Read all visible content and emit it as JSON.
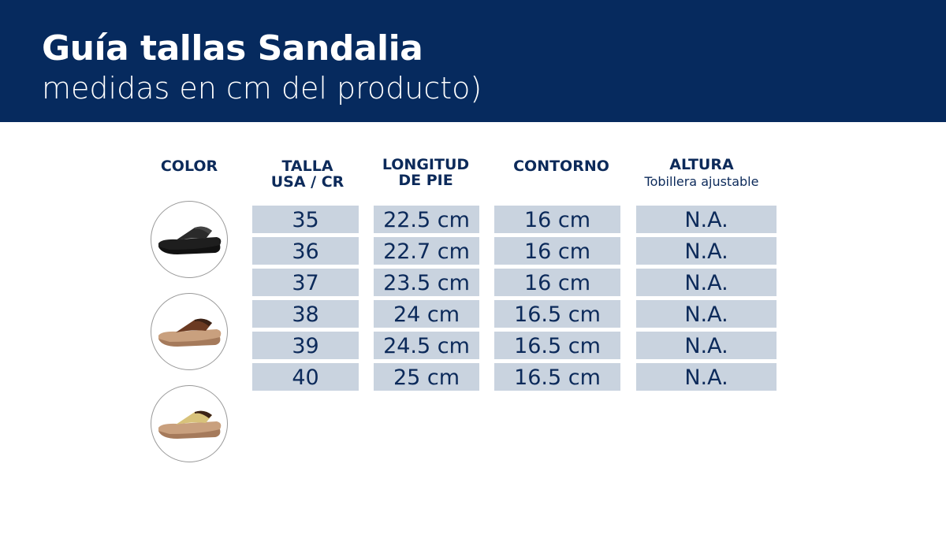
{
  "header": {
    "title": "Guía tallas Sandalia",
    "subtitle": "medidas en cm del producto)"
  },
  "columns": [
    {
      "label": "COLOR"
    },
    {
      "label": "TALLA\nUSA / CR"
    },
    {
      "label": "LONGITUD\nDE PIE"
    },
    {
      "label": "CONTORNO"
    },
    {
      "label": "ALTURA",
      "sublabel": "Tobillera ajustable"
    }
  ],
  "colors": [
    {
      "name": "black-sandal",
      "strap": "#2a2a2a",
      "sole": "#1e1e1e"
    },
    {
      "name": "brown-sandal",
      "strap": "#6b3a22",
      "sole": "#c9a07e"
    },
    {
      "name": "gold-sandal",
      "strap": "#d8c27a",
      "sole": "#c9a07e"
    }
  ],
  "rows": [
    {
      "talla": "35",
      "longitud": "22.5 cm",
      "contorno": "16 cm",
      "altura": "N.A."
    },
    {
      "talla": "36",
      "longitud": "22.7 cm",
      "contorno": "16 cm",
      "altura": "N.A."
    },
    {
      "talla": "37",
      "longitud": "23.5 cm",
      "contorno": "16 cm",
      "altura": "N.A."
    },
    {
      "talla": "38",
      "longitud": "24 cm",
      "contorno": "16.5 cm",
      "altura": "N.A."
    },
    {
      "talla": "39",
      "longitud": "24.5 cm",
      "contorno": "16.5 cm",
      "altura": "N.A."
    },
    {
      "talla": "40",
      "longitud": "25 cm",
      "contorno": "16.5 cm",
      "altura": "N.A."
    }
  ]
}
